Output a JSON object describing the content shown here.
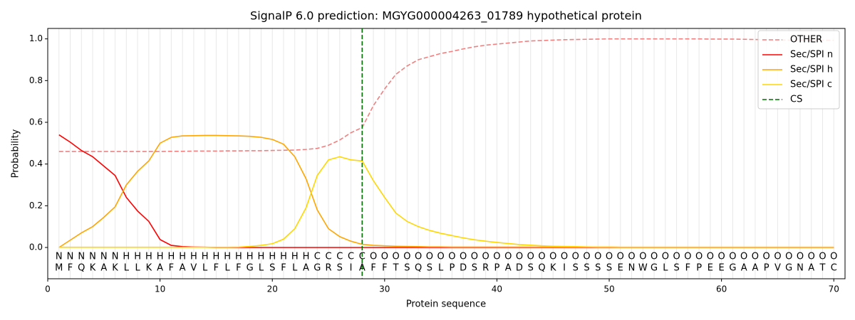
{
  "chart_data": {
    "type": "line",
    "title": "SignalP 6.0 prediction: MGYG000004263_01789 hypothetical protein",
    "xlabel": "Protein sequence",
    "ylabel": "Probability",
    "x": [
      1,
      2,
      3,
      4,
      5,
      6,
      7,
      8,
      9,
      10,
      11,
      12,
      13,
      14,
      15,
      16,
      17,
      18,
      19,
      20,
      21,
      22,
      23,
      24,
      25,
      26,
      27,
      28,
      29,
      30,
      31,
      32,
      33,
      34,
      35,
      36,
      37,
      38,
      39,
      40,
      41,
      42,
      43,
      44,
      45,
      46,
      47,
      48,
      49,
      50,
      51,
      52,
      53,
      54,
      55,
      56,
      57,
      58,
      59,
      60,
      61,
      62,
      63,
      64,
      65,
      66,
      67,
      68,
      69,
      70
    ],
    "residues": [
      "M",
      "F",
      "Q",
      "K",
      "A",
      "K",
      "L",
      "L",
      "K",
      "A",
      "F",
      "A",
      "V",
      "L",
      "F",
      "L",
      "F",
      "G",
      "L",
      "S",
      "F",
      "L",
      "A",
      "G",
      "R",
      "S",
      "I",
      "A",
      "F",
      "F",
      "T",
      "S",
      "Q",
      "S",
      "L",
      "P",
      "D",
      "S",
      "R",
      "P",
      "A",
      "D",
      "S",
      "Q",
      "K",
      "I",
      "S",
      "S",
      "S",
      "S",
      "E",
      "N",
      "W",
      "G",
      "L",
      "S",
      "F",
      "P",
      "E",
      "E",
      "G",
      "A",
      "A",
      "P",
      "V",
      "G",
      "N",
      "A",
      "T",
      "C"
    ],
    "regions": [
      "N",
      "N",
      "N",
      "N",
      "N",
      "N",
      "H",
      "H",
      "H",
      "H",
      "H",
      "H",
      "H",
      "H",
      "H",
      "H",
      "H",
      "H",
      "H",
      "H",
      "H",
      "H",
      "H",
      "C",
      "C",
      "C",
      "C",
      "C",
      "O",
      "O",
      "O",
      "O",
      "O",
      "O",
      "O",
      "O",
      "O",
      "O",
      "O",
      "O",
      "O",
      "O",
      "O",
      "O",
      "O",
      "O",
      "O",
      "O",
      "O",
      "O",
      "O",
      "O",
      "O",
      "O",
      "O",
      "O",
      "O",
      "O",
      "O",
      "O",
      "O",
      "O",
      "O",
      "O",
      "O",
      "O",
      "O",
      "O",
      "O",
      "O"
    ],
    "region_colors": {
      "N": "#ff0000",
      "H": "#ffa500",
      "C": "#ffd700",
      "O": "#808080"
    },
    "series": [
      {
        "name": "OTHER",
        "color": "#f08080",
        "dashed": true,
        "values": [
          0.46,
          0.46,
          0.46,
          0.46,
          0.46,
          0.46,
          0.46,
          0.46,
          0.46,
          0.46,
          0.461,
          0.461,
          0.462,
          0.462,
          0.462,
          0.463,
          0.463,
          0.464,
          0.464,
          0.465,
          0.466,
          0.467,
          0.47,
          0.475,
          0.49,
          0.515,
          0.55,
          0.575,
          0.68,
          0.76,
          0.83,
          0.87,
          0.9,
          0.915,
          0.93,
          0.94,
          0.952,
          0.962,
          0.97,
          0.975,
          0.98,
          0.985,
          0.99,
          0.992,
          0.994,
          0.996,
          0.997,
          0.998,
          0.999,
          1.0,
          1.0,
          1.0,
          1.0,
          1.0,
          1.0,
          1.0,
          1.0,
          1.0,
          0.999,
          0.999,
          0.999,
          0.998,
          0.997,
          0.996,
          0.995,
          0.994,
          0.994,
          0.993,
          0.993,
          0.993
        ]
      },
      {
        "name": "Sec/SPI n",
        "color": "#ff0000",
        "dashed": false,
        "values": [
          0.54,
          0.505,
          0.465,
          0.435,
          0.39,
          0.345,
          0.24,
          0.175,
          0.125,
          0.038,
          0.01,
          0.004,
          0.002,
          0.001,
          0,
          0,
          0,
          0,
          0,
          0,
          0,
          0,
          0,
          0,
          0,
          0,
          0,
          0,
          0,
          0,
          0,
          0,
          0,
          0,
          0,
          0,
          0,
          0,
          0,
          0,
          0,
          0,
          0,
          0,
          0,
          0,
          0,
          0,
          0,
          0,
          0,
          0,
          0,
          0,
          0,
          0,
          0,
          0,
          0,
          0,
          0,
          0,
          0,
          0,
          0,
          0,
          0,
          0,
          0,
          0
        ]
      },
      {
        "name": "Sec/SPI h",
        "color": "#ffa500",
        "dashed": false,
        "values": [
          0,
          0.035,
          0.07,
          0.1,
          0.145,
          0.195,
          0.3,
          0.365,
          0.415,
          0.5,
          0.528,
          0.535,
          0.536,
          0.537,
          0.537,
          0.536,
          0.535,
          0.533,
          0.528,
          0.518,
          0.495,
          0.435,
          0.33,
          0.18,
          0.09,
          0.052,
          0.03,
          0.015,
          0.01,
          0.008,
          0.006,
          0.005,
          0.004,
          0.003,
          0.003,
          0.002,
          0.002,
          0.002,
          0.002,
          0.002,
          0.002,
          0.002,
          0.002,
          0.002,
          0.002,
          0.002,
          0.002,
          0.002,
          0.002,
          0.002,
          0.001,
          0.001,
          0.001,
          0.001,
          0.001,
          0.001,
          0.001,
          0.001,
          0.001,
          0.001,
          0.001,
          0.001,
          0.001,
          0.001,
          0.001,
          0.001,
          0.001,
          0.001,
          0.001,
          0.001
        ]
      },
      {
        "name": "Sec/SPI c",
        "color": "#ffd700",
        "dashed": false,
        "values": [
          0.001,
          0.001,
          0.001,
          0.001,
          0.001,
          0.001,
          0.001,
          0.001,
          0.001,
          0.001,
          0.001,
          0.001,
          0.001,
          0.001,
          0.001,
          0.001,
          0.002,
          0.005,
          0.01,
          0.018,
          0.04,
          0.09,
          0.19,
          0.345,
          0.42,
          0.435,
          0.42,
          0.415,
          0.32,
          0.24,
          0.165,
          0.125,
          0.1,
          0.082,
          0.068,
          0.057,
          0.046,
          0.037,
          0.03,
          0.024,
          0.019,
          0.014,
          0.011,
          0.008,
          0.006,
          0.005,
          0.004,
          0.003,
          0.002,
          0.002,
          0.001,
          0.001,
          0.001,
          0.001,
          0.001,
          0.001,
          0.001,
          0.001,
          0.001,
          0.001,
          0.001,
          0.001,
          0.001,
          0.001,
          0.001,
          0.001,
          0.001,
          0.001,
          0.001,
          0.001
        ]
      }
    ],
    "cs": {
      "name": "CS",
      "x": 28,
      "color": "#007000"
    },
    "xlim": [
      0,
      71
    ],
    "ylim": [
      -0.15,
      1.05
    ],
    "xticks": [
      0,
      10,
      20,
      30,
      40,
      50,
      60,
      70
    ],
    "yticks": [
      {
        "value": 0,
        "label": "0.0"
      },
      {
        "value": 0.2,
        "label": "0.2"
      },
      {
        "value": 0.4,
        "label": "0.4"
      },
      {
        "value": 0.6,
        "label": "0.6"
      },
      {
        "value": 0.8,
        "label": "0.8"
      },
      {
        "value": 1.0,
        "label": "1.0"
      }
    ],
    "grid": true,
    "legend": "upper right"
  }
}
